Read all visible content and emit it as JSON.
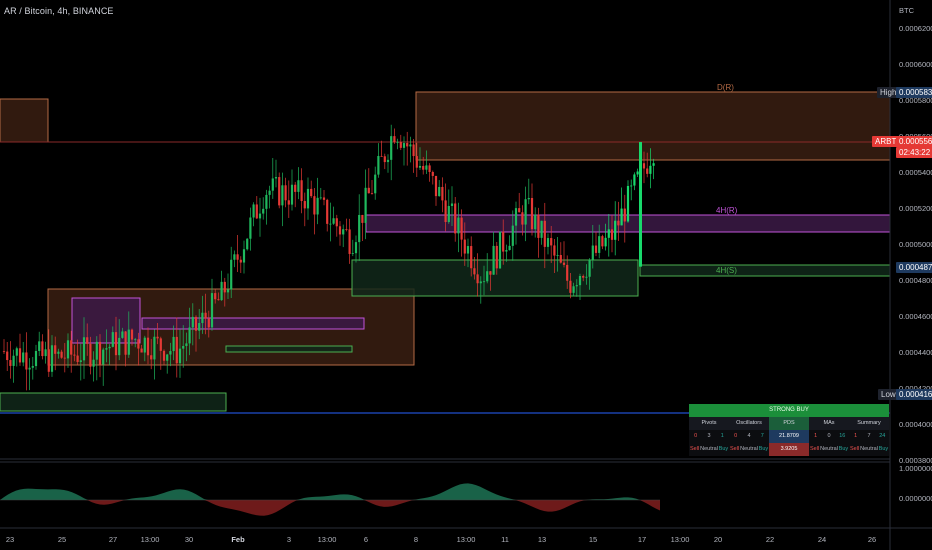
{
  "header": {
    "symbol": "AR / Bitcoin, 4h, BINANCE"
  },
  "currency": "BTC",
  "price_axis": {
    "ticks": [
      "0.0006200",
      "0.0006000",
      "0.0005800",
      "0.0005600",
      "0.0005400",
      "0.0005200",
      "0.0005000",
      "0.0004800",
      "0.0004600",
      "0.0004400",
      "0.0004200",
      "0.0004000",
      "0.0003800"
    ]
  },
  "tags": {
    "high_label": "High",
    "high_value": "0.0005834",
    "symbol_short": "ARBTC",
    "last_price": "0.0005565",
    "countdown": "02:43:22",
    "level_value": "0.0004871",
    "low_label": "Low",
    "low_value": "0.0004162"
  },
  "zone_labels": {
    "d_r": "D(R)",
    "4h_r": "4H(R)",
    "4h_s": "4H(S)"
  },
  "oscillator_axis": {
    "top": "1.0000000",
    "mid": "0.0000000"
  },
  "time_axis": [
    "23",
    "25",
    "27",
    "13:00",
    "30",
    "Feb",
    "3",
    "13:00",
    "6",
    "8",
    "13:00",
    "11",
    "13",
    "15",
    "17",
    "13:00",
    "20",
    "22",
    "24",
    "26"
  ],
  "summary_table": {
    "title": "STRONG BUY",
    "groups": [
      {
        "name": "Pivots",
        "nums": [
          "0",
          "3",
          "1"
        ],
        "words": [
          "Sell",
          "Neutral",
          "Buy"
        ]
      },
      {
        "name": "Oscillators",
        "nums": [
          "0",
          "4",
          "7"
        ],
        "words": [
          "Sell",
          "Neutral",
          "Buy"
        ]
      },
      {
        "name": "PDS",
        "nums": [
          "21.8709"
        ],
        "words": [
          "3.9205"
        ]
      },
      {
        "name": "MAs",
        "nums": [
          "1",
          "0",
          "16"
        ],
        "words": [
          "Sell",
          "Neutral",
          "Buy"
        ]
      },
      {
        "name": "Summary",
        "nums": [
          "1",
          "7",
          "24"
        ],
        "words": [
          "Sell",
          "Neutral",
          "Buy"
        ]
      }
    ]
  },
  "colors": {
    "up": "#26a69a",
    "up_bright": "#18d96b",
    "down": "#ef5350",
    "resistance_zone": "#3a1f12",
    "resistance_line": "#b46a45",
    "purple_zone": "#3c1a46",
    "purple_line": "#c154d8",
    "support_zone": "#10281a",
    "support_line": "#4caf50",
    "price_tag": "#e53935",
    "level_tag": "#1e3a5f",
    "blue_line": "#2962ff"
  },
  "chart_data": {
    "type": "candlestick",
    "symbol": "AR / Bitcoin",
    "interval": "4h",
    "exchange": "BINANCE",
    "y_axis": {
      "min": 0.00038,
      "max": 0.00063,
      "unit": "BTC"
    },
    "x_axis_labels": [
      "23",
      "25",
      "27",
      "13:00",
      "30",
      "Feb",
      "3",
      "13:00",
      "6",
      "8",
      "13:00",
      "11",
      "13",
      "15",
      "17",
      "13:00",
      "20",
      "22",
      "24",
      "26"
    ],
    "series": [
      {
        "name": "close_path_approx",
        "points": [
          [
            "23",
            0.00044
          ],
          [
            "25",
            0.000436
          ],
          [
            "27",
            0.00044
          ],
          [
            "13:00",
            0.000447
          ],
          [
            "30",
            0.00044
          ],
          [
            "Feb",
            0.00047
          ],
          [
            "3",
            0.00053
          ],
          [
            "13:00",
            0.000526
          ],
          [
            "6",
            0.000502
          ],
          [
            "8",
            0.000565
          ],
          [
            "13:00",
            0.000528
          ],
          [
            "11",
            0.000482
          ],
          [
            "13",
            0.00052
          ],
          [
            "15",
            0.000478
          ],
          [
            "17",
            0.000505
          ],
          [
            "13:00",
            0.0005565
          ]
        ]
      }
    ],
    "levels": {
      "high": 0.0005834,
      "low": 0.0004162,
      "last": 0.0005565,
      "support_4h": 0.0004871
    },
    "zones": [
      {
        "label": "D(R)",
        "from": 0.0005455,
        "to": 0.0005834
      },
      {
        "label": "4H(R)",
        "from": 0.0005065,
        "to": 0.0005155
      },
      {
        "label": "4H(S)",
        "from": 0.0004805,
        "to": 0.0004871
      }
    ]
  }
}
